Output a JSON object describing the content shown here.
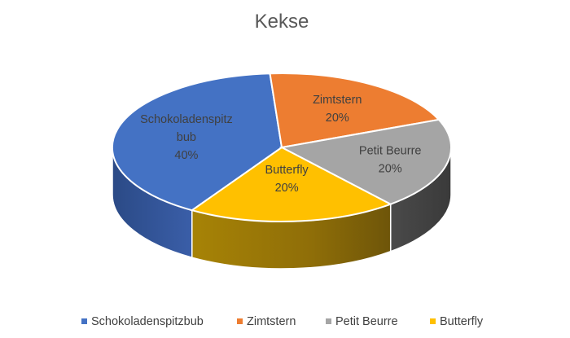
{
  "chart_data": {
    "type": "pie",
    "title": "Kekse",
    "categories": [
      "Schokoladenspitzbub",
      "Zimtstern",
      "Petit Beurre",
      "Butterfly"
    ],
    "values": [
      40,
      20,
      20,
      20
    ],
    "data_labels": [
      {
        "lines": [
          "Schokoladenspitz",
          "bub",
          "40%"
        ]
      },
      {
        "lines": [
          "Zimtstern",
          "20%"
        ]
      },
      {
        "lines": [
          "Petit Beurre",
          "20%"
        ]
      },
      {
        "lines": [
          "Butterfly",
          "20%"
        ]
      }
    ],
    "colors": [
      "#4472C4",
      "#ED7D31",
      "#A5A5A5",
      "#FFC000"
    ],
    "style": "3d-pie",
    "legend_position": "bottom"
  }
}
